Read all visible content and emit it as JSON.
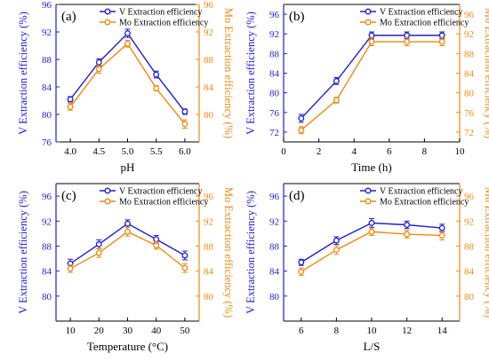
{
  "colors": {
    "v": "#1f1fd6",
    "mo": "#ee8a12",
    "axis": "#000000"
  },
  "chart_data": [
    {
      "type": "line",
      "panel_label": "(a)",
      "xlabel": "pH",
      "ylabel_left": "V Extraction efficiency (%)",
      "ylabel_right": "Mo Extraction efficiency (%)",
      "x": [
        4.0,
        4.5,
        5.0,
        5.5,
        6.0
      ],
      "xlim": [
        3.75,
        6.25
      ],
      "xticks": [
        4.0,
        4.5,
        5.0,
        5.5,
        6.0
      ],
      "xtick_labels": [
        "4.0",
        "4.5",
        "5.0",
        "5.5",
        "6.0"
      ],
      "ylim_left": [
        76,
        96
      ],
      "yticks_left": [
        76,
        80,
        84,
        88,
        92,
        96
      ],
      "ylim_right": [
        76,
        96
      ],
      "yticks_right": [
        80,
        84,
        88,
        92,
        96
      ],
      "legend_position": "top-right",
      "series": [
        {
          "name": "V Extraction efficiency",
          "axis": "left",
          "marker": "circle",
          "values": [
            82.2,
            87.6,
            91.8,
            85.8,
            80.4
          ],
          "errors": [
            0.4,
            0.5,
            0.6,
            0.5,
            0.4
          ]
        },
        {
          "name": "Mo Extraction efficiency",
          "axis": "right",
          "marker": "circle",
          "values": [
            81.1,
            86.6,
            90.3,
            83.8,
            78.6
          ],
          "errors": [
            0.5,
            0.6,
            0.5,
            0.4,
            0.6
          ]
        }
      ]
    },
    {
      "type": "line",
      "panel_label": "(b)",
      "xlabel": "Time (h)",
      "ylabel_left": "V Extraction efficiency (%)",
      "ylabel_right": "Mo Extraction efficiency (%)",
      "x": [
        1,
        3,
        5,
        7,
        9
      ],
      "xlim": [
        0,
        10
      ],
      "xticks": [
        0,
        2,
        4,
        6,
        8,
        10
      ],
      "xtick_labels": [
        "0",
        "2",
        "4",
        "6",
        "8",
        "10"
      ],
      "ylim_left": [
        70,
        98
      ],
      "yticks_left": [
        72,
        76,
        80,
        84,
        88,
        92,
        96
      ],
      "ylim_right": [
        70,
        98
      ],
      "yticks_right": [
        72,
        76,
        80,
        84,
        88,
        92,
        96
      ],
      "legend_position": "top-right",
      "series": [
        {
          "name": "V Extraction efficiency",
          "axis": "left",
          "marker": "circle",
          "values": [
            74.8,
            82.4,
            91.7,
            91.7,
            91.7
          ],
          "errors": [
            0.8,
            0.7,
            0.7,
            0.7,
            0.7
          ]
        },
        {
          "name": "Mo Extraction efficiency",
          "axis": "right",
          "marker": "circle",
          "values": [
            72.4,
            78.5,
            90.4,
            90.4,
            90.4
          ],
          "errors": [
            0.7,
            0.6,
            0.8,
            0.8,
            0.8
          ]
        }
      ]
    },
    {
      "type": "line",
      "panel_label": "(c)",
      "xlabel": "Temperature (°C)",
      "ylabel_left": "V Extraction efficiency (%)",
      "ylabel_right": "Mo Extraction efficiency (%)",
      "x": [
        10,
        20,
        30,
        40,
        50
      ],
      "xlim": [
        5,
        55
      ],
      "xticks": [
        10,
        20,
        30,
        40,
        50
      ],
      "xtick_labels": [
        "10",
        "20",
        "30",
        "40",
        "50"
      ],
      "ylim_left": [
        76,
        98
      ],
      "yticks_left": [
        80,
        84,
        88,
        92,
        96
      ],
      "ylim_right": [
        76,
        98
      ],
      "yticks_right": [
        80,
        84,
        88,
        92,
        96
      ],
      "legend_position": "top-right",
      "series": [
        {
          "name": "V Extraction efficiency",
          "axis": "left",
          "marker": "circle",
          "values": [
            85.2,
            88.3,
            91.6,
            89.1,
            86.5
          ],
          "errors": [
            0.7,
            0.7,
            0.6,
            0.6,
            0.7
          ]
        },
        {
          "name": "Mo Extraction efficiency",
          "axis": "right",
          "marker": "circle",
          "values": [
            84.4,
            86.9,
            90.3,
            88.1,
            84.5
          ],
          "errors": [
            0.6,
            0.7,
            0.7,
            0.6,
            0.7
          ]
        }
      ]
    },
    {
      "type": "line",
      "panel_label": "(d)",
      "xlabel": "L/S",
      "ylabel_left": "V Extraction efficiency (%)",
      "ylabel_right": "Mo Extraction efficiency (%)",
      "x": [
        6,
        8,
        10,
        12,
        14
      ],
      "xlim": [
        5,
        15
      ],
      "xticks": [
        6,
        8,
        10,
        12,
        14
      ],
      "xtick_labels": [
        "6",
        "8",
        "10",
        "12",
        "14"
      ],
      "ylim_left": [
        76,
        98
      ],
      "yticks_left": [
        80,
        84,
        88,
        92,
        96
      ],
      "ylim_right": [
        76,
        98
      ],
      "yticks_right": [
        80,
        84,
        88,
        92,
        96
      ],
      "legend_position": "top-right",
      "series": [
        {
          "name": "V Extraction efficiency",
          "axis": "left",
          "marker": "circle",
          "values": [
            85.4,
            88.9,
            91.7,
            91.4,
            90.9
          ],
          "errors": [
            0.5,
            0.6,
            0.7,
            0.6,
            0.6
          ]
        },
        {
          "name": "Mo Extraction efficiency",
          "axis": "right",
          "marker": "circle",
          "values": [
            83.9,
            87.4,
            90.3,
            89.9,
            89.7
          ],
          "errors": [
            0.6,
            0.7,
            0.6,
            0.6,
            0.7
          ]
        }
      ]
    }
  ]
}
